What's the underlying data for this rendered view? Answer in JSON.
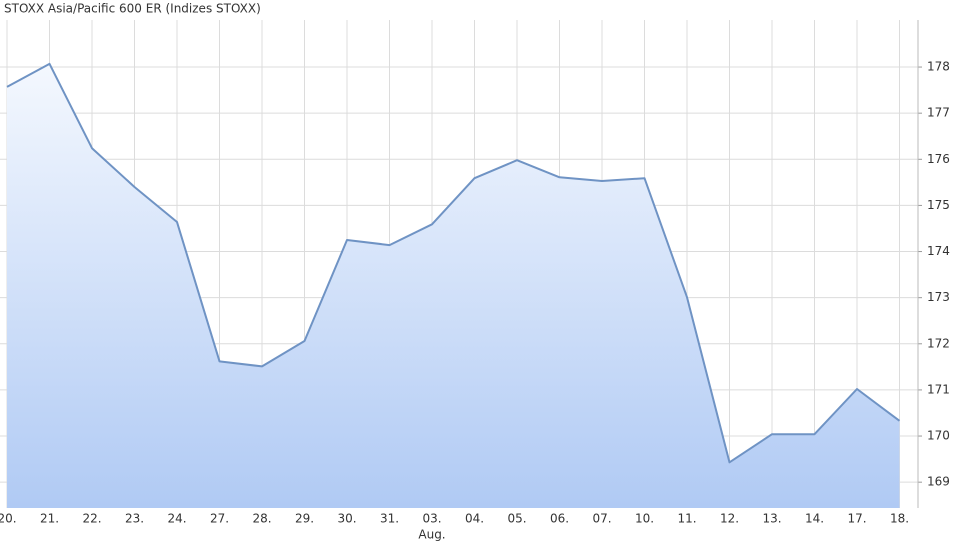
{
  "chart_data": {
    "type": "area",
    "title": "STOXX Asia/Pacific 600 ER (Indizes STOXX)",
    "categories": [
      "20.",
      "21.",
      "22.",
      "23.",
      "24.",
      "27.",
      "28.",
      "29.",
      "30.",
      "31.",
      "03.",
      "04.",
      "05.",
      "06.",
      "07.",
      "10.",
      "11.",
      "12.",
      "13.",
      "14.",
      "17.",
      "18."
    ],
    "x_annotation": "Aug.",
    "values": [
      177.57,
      178.07,
      176.24,
      175.4,
      174.64,
      171.62,
      171.51,
      172.06,
      174.25,
      174.14,
      174.59,
      175.59,
      175.98,
      175.61,
      175.53,
      175.59,
      173.01,
      169.43,
      170.04,
      170.04,
      171.02,
      170.33
    ],
    "color": "#6f93c4",
    "ylim": [
      168.44,
      179.02
    ],
    "yticks": [
      169,
      170,
      171,
      172,
      173,
      174,
      175,
      176,
      177,
      178
    ],
    "grid": true
  }
}
